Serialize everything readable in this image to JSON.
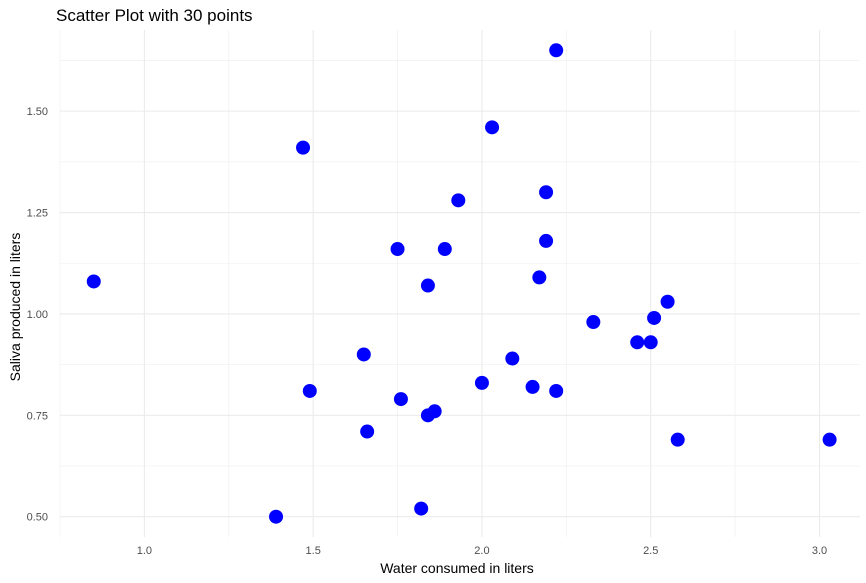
{
  "chart_data": {
    "type": "scatter",
    "title": "Scatter Plot with 30 points",
    "xlabel": "Water consumed in liters",
    "ylabel": "Saliva produced in liters",
    "xlim": [
      0.75,
      3.12
    ],
    "ylim": [
      0.45,
      1.7
    ],
    "x_ticks": [
      1.0,
      1.5,
      2.0,
      2.5,
      3.0
    ],
    "x_tick_labels": [
      "1.0",
      "1.5",
      "2.0",
      "2.5",
      "3.0"
    ],
    "y_ticks": [
      0.5,
      0.75,
      1.0,
      1.25,
      1.5
    ],
    "y_tick_labels": [
      "0.50",
      "0.75",
      "1.00",
      "1.25",
      "1.50"
    ],
    "grid": true,
    "point_color": "#0000ff",
    "points": [
      {
        "x": 0.85,
        "y": 1.08
      },
      {
        "x": 1.39,
        "y": 0.5
      },
      {
        "x": 1.47,
        "y": 1.41
      },
      {
        "x": 1.49,
        "y": 0.81
      },
      {
        "x": 1.65,
        "y": 0.9
      },
      {
        "x": 1.66,
        "y": 0.71
      },
      {
        "x": 1.75,
        "y": 1.16
      },
      {
        "x": 1.76,
        "y": 0.79
      },
      {
        "x": 1.82,
        "y": 0.52
      },
      {
        "x": 1.84,
        "y": 1.07
      },
      {
        "x": 1.84,
        "y": 0.75
      },
      {
        "x": 1.86,
        "y": 0.76
      },
      {
        "x": 1.89,
        "y": 1.16
      },
      {
        "x": 1.93,
        "y": 1.28
      },
      {
        "x": 2.0,
        "y": 0.83
      },
      {
        "x": 2.03,
        "y": 1.46
      },
      {
        "x": 2.09,
        "y": 0.89
      },
      {
        "x": 2.15,
        "y": 0.82
      },
      {
        "x": 2.17,
        "y": 1.09
      },
      {
        "x": 2.19,
        "y": 1.3
      },
      {
        "x": 2.19,
        "y": 1.18
      },
      {
        "x": 2.22,
        "y": 0.81
      },
      {
        "x": 2.22,
        "y": 1.65
      },
      {
        "x": 2.33,
        "y": 0.98
      },
      {
        "x": 2.46,
        "y": 0.93
      },
      {
        "x": 2.5,
        "y": 0.93
      },
      {
        "x": 2.51,
        "y": 0.99
      },
      {
        "x": 2.55,
        "y": 1.03
      },
      {
        "x": 2.58,
        "y": 0.69
      },
      {
        "x": 3.03,
        "y": 0.69
      }
    ]
  }
}
